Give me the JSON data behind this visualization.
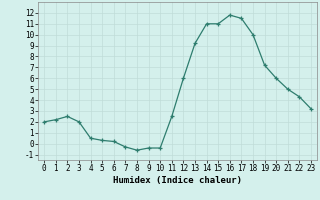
{
  "x": [
    0,
    1,
    2,
    3,
    4,
    5,
    6,
    7,
    8,
    9,
    10,
    11,
    12,
    13,
    14,
    15,
    16,
    17,
    18,
    19,
    20,
    21,
    22,
    23
  ],
  "y": [
    2.0,
    2.2,
    2.5,
    2.0,
    0.5,
    0.3,
    0.2,
    -0.3,
    -0.6,
    -0.4,
    -0.4,
    2.5,
    6.0,
    9.2,
    11.0,
    11.0,
    11.8,
    11.5,
    10.0,
    7.2,
    6.0,
    5.0,
    4.3,
    3.2
  ],
  "line_color": "#2e7d6e",
  "marker": "+",
  "marker_size": 3,
  "bg_color": "#d4f0ec",
  "grid_color": "#c0ddd8",
  "xlabel": "Humidex (Indice chaleur)",
  "xlim": [
    -0.5,
    23.5
  ],
  "ylim": [
    -1.5,
    13.0
  ],
  "xticks": [
    0,
    1,
    2,
    3,
    4,
    5,
    6,
    7,
    8,
    9,
    10,
    11,
    12,
    13,
    14,
    15,
    16,
    17,
    18,
    19,
    20,
    21,
    22,
    23
  ],
  "yticks": [
    -1,
    0,
    1,
    2,
    3,
    4,
    5,
    6,
    7,
    8,
    9,
    10,
    11,
    12
  ],
  "tick_fontsize": 5.5,
  "xlabel_fontsize": 6.5,
  "linewidth": 0.9,
  "markeredgewidth": 0.9
}
